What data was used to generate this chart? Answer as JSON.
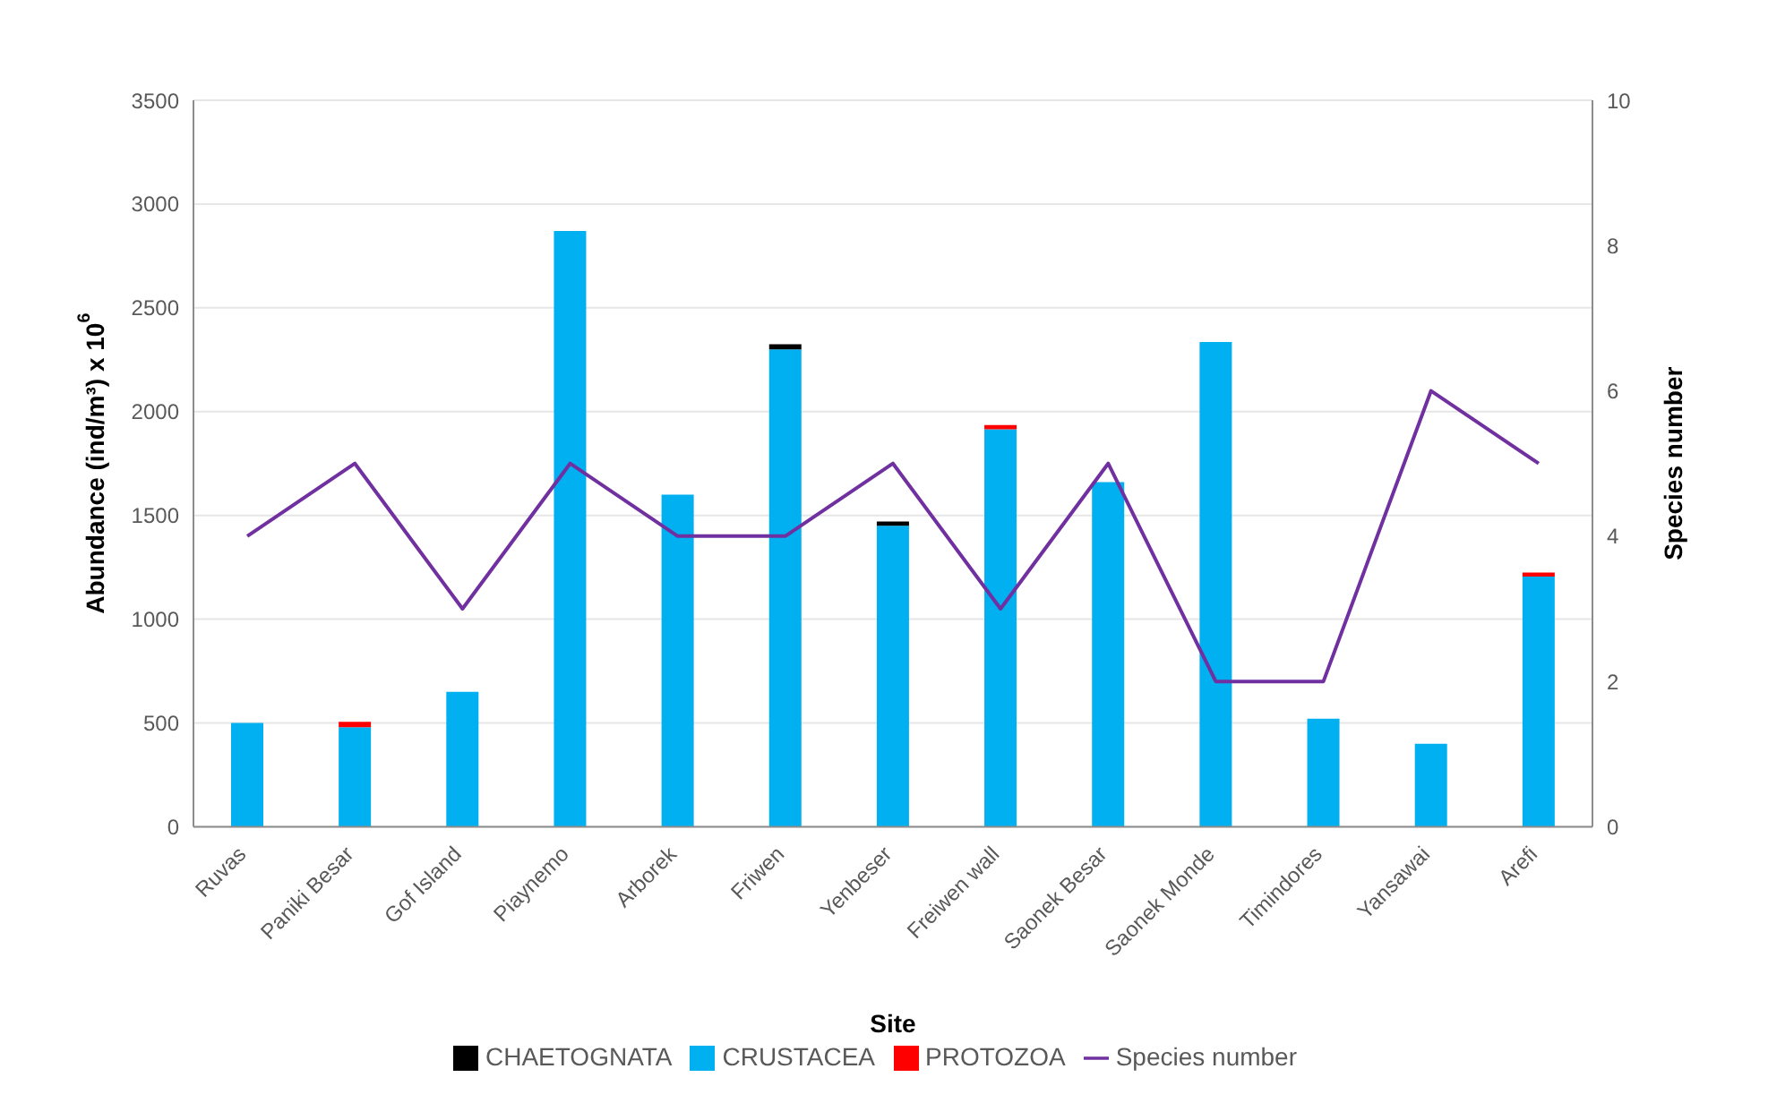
{
  "chart_data": {
    "type": "bar",
    "stacked": true,
    "xlabel": "Site",
    "ylabel": "Abundance (ind/m³)  x 10$^{6}$",
    "y2label": "Species number",
    "categories": [
      "Ruvas",
      "Paniki Besar",
      "Gof Island",
      "Piaynemo",
      "Arborek",
      "Friwen",
      "Yenbeser",
      "Freiwen wall",
      "Saonek Besar",
      "Saonek Monde",
      "Timindores",
      "Yansawai",
      "Arefi"
    ],
    "series": [
      {
        "name": "CRUSTACEA",
        "color": "#00b0f0",
        "values": [
          500,
          480,
          650,
          2870,
          1600,
          2300,
          1450,
          1915,
          1660,
          2335,
          520,
          400,
          1205
        ]
      },
      {
        "name": "PROTOZOA",
        "color": "#ff0000",
        "values": [
          null,
          25,
          null,
          null,
          null,
          null,
          null,
          20,
          null,
          null,
          null,
          null,
          20
        ]
      },
      {
        "name": "CHAETOGNATA",
        "color": "#000000",
        "values": [
          null,
          null,
          null,
          null,
          null,
          25,
          20,
          null,
          null,
          null,
          null,
          null,
          null
        ]
      },
      {
        "name": "Species number",
        "type": "line",
        "axis": "y2",
        "color": "#7030a0",
        "values": [
          4,
          5,
          3,
          5,
          4,
          4,
          5,
          3,
          5,
          2,
          2,
          6,
          5
        ]
      }
    ],
    "ylim": [
      0,
      3500
    ],
    "yticks": [
      0,
      500,
      1000,
      1500,
      2000,
      2500,
      3000,
      3500
    ],
    "y2lim": [
      0,
      10
    ],
    "y2ticks": [
      0,
      2,
      4,
      6,
      8,
      10
    ],
    "grid": "y",
    "legend": "bottom",
    "marker": "none"
  }
}
